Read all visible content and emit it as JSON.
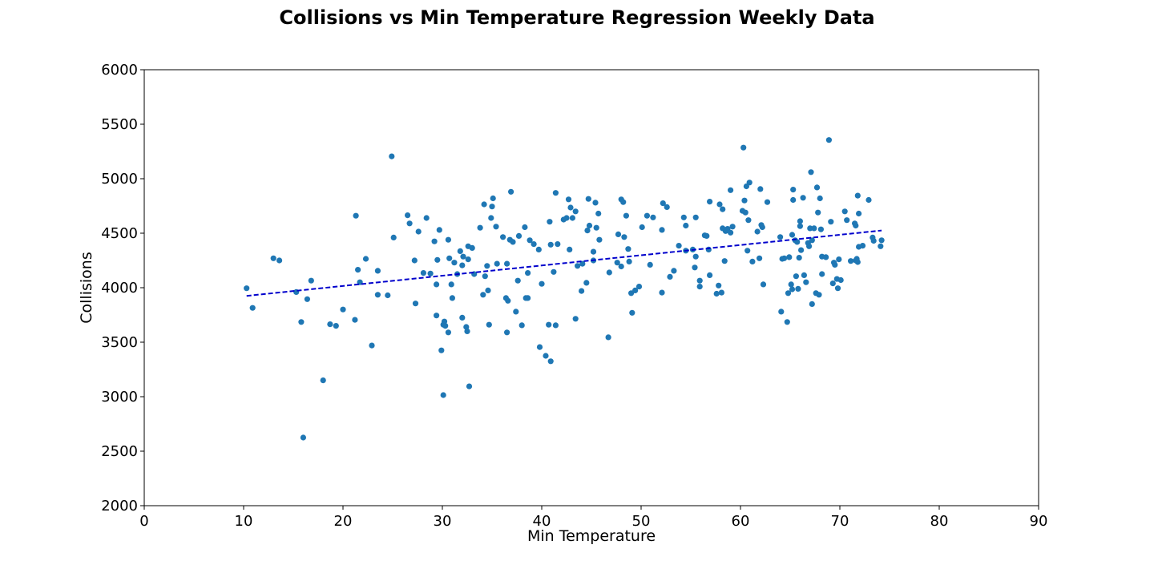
{
  "chart_data": {
    "type": "scatter",
    "title": "Collisions vs Min Temperature Regression Weekly Data",
    "xlabel": "Min Temperature",
    "ylabel": "Collisions",
    "xlim": [
      0,
      90
    ],
    "ylim": [
      2000,
      6000
    ],
    "x_ticks": [
      0,
      10,
      20,
      30,
      40,
      50,
      60,
      70,
      80,
      90
    ],
    "y_ticks": [
      2000,
      2500,
      3000,
      3500,
      4000,
      4500,
      5000,
      5500,
      6000
    ],
    "grid": false,
    "point_color": "#1f77b4",
    "regression_line": {
      "x": [
        10.3,
        74.2
      ],
      "y": [
        3925,
        4525
      ],
      "color": "#0000cc",
      "style": "dashed"
    },
    "points": [
      [
        10.3,
        3995
      ],
      [
        10.9,
        3815
      ],
      [
        13.0,
        4270
      ],
      [
        13.6,
        4250
      ],
      [
        15.3,
        3960
      ],
      [
        15.8,
        3685
      ],
      [
        16.0,
        2625
      ],
      [
        16.4,
        3895
      ],
      [
        16.8,
        4065
      ],
      [
        18.0,
        3150
      ],
      [
        18.7,
        3665
      ],
      [
        19.3,
        3650
      ],
      [
        20.0,
        3800
      ],
      [
        21.2,
        3705
      ],
      [
        21.3,
        4660
      ],
      [
        21.5,
        4165
      ],
      [
        21.7,
        4050
      ],
      [
        22.3,
        4265
      ],
      [
        22.9,
        3470
      ],
      [
        23.5,
        3935
      ],
      [
        23.5,
        4155
      ],
      [
        24.5,
        3930
      ],
      [
        24.9,
        5205
      ],
      [
        25.1,
        4460
      ],
      [
        26.5,
        4665
      ],
      [
        26.7,
        4590
      ],
      [
        27.2,
        4250
      ],
      [
        27.3,
        3855
      ],
      [
        27.6,
        4515
      ],
      [
        28.1,
        4135
      ],
      [
        28.4,
        4640
      ],
      [
        28.8,
        4130
      ],
      [
        29.2,
        4425
      ],
      [
        29.4,
        4030
      ],
      [
        29.4,
        3745
      ],
      [
        29.5,
        4255
      ],
      [
        29.7,
        4530
      ],
      [
        29.9,
        3425
      ],
      [
        30.1,
        3660
      ],
      [
        30.1,
        3015
      ],
      [
        30.2,
        3690
      ],
      [
        30.3,
        3650
      ],
      [
        30.6,
        4440
      ],
      [
        30.6,
        3590
      ],
      [
        30.7,
        4270
      ],
      [
        30.9,
        4030
      ],
      [
        31.0,
        3905
      ],
      [
        31.2,
        4230
      ],
      [
        31.5,
        4125
      ],
      [
        31.8,
        4335
      ],
      [
        32.0,
        3725
      ],
      [
        32.0,
        4205
      ],
      [
        32.1,
        4285
      ],
      [
        32.4,
        3640
      ],
      [
        32.5,
        3600
      ],
      [
        32.6,
        4260
      ],
      [
        32.6,
        4380
      ],
      [
        32.7,
        3095
      ],
      [
        33.0,
        4365
      ],
      [
        33.2,
        4125
      ],
      [
        33.8,
        4550
      ],
      [
        34.1,
        3935
      ],
      [
        34.2,
        4765
      ],
      [
        34.3,
        4105
      ],
      [
        34.5,
        4200
      ],
      [
        34.6,
        3975
      ],
      [
        34.7,
        3660
      ],
      [
        34.9,
        4640
      ],
      [
        35.0,
        4745
      ],
      [
        35.1,
        4820
      ],
      [
        35.4,
        4560
      ],
      [
        35.5,
        4220
      ],
      [
        36.1,
        4465
      ],
      [
        36.4,
        3905
      ],
      [
        36.5,
        4220
      ],
      [
        36.5,
        3590
      ],
      [
        36.6,
        3880
      ],
      [
        36.8,
        4440
      ],
      [
        36.9,
        4880
      ],
      [
        37.1,
        4420
      ],
      [
        37.4,
        3780
      ],
      [
        37.6,
        4065
      ],
      [
        37.7,
        4475
      ],
      [
        38.0,
        3655
      ],
      [
        38.3,
        4555
      ],
      [
        38.4,
        3905
      ],
      [
        38.6,
        4135
      ],
      [
        38.6,
        3905
      ],
      [
        38.8,
        4435
      ],
      [
        39.2,
        4400
      ],
      [
        39.7,
        4350
      ],
      [
        39.8,
        3455
      ],
      [
        40.0,
        4035
      ],
      [
        40.4,
        3375
      ],
      [
        40.7,
        3660
      ],
      [
        40.8,
        4605
      ],
      [
        40.9,
        4395
      ],
      [
        40.9,
        3325
      ],
      [
        41.2,
        4145
      ],
      [
        41.4,
        3655
      ],
      [
        41.4,
        4870
      ],
      [
        41.6,
        4400
      ],
      [
        42.2,
        4625
      ],
      [
        42.5,
        4640
      ],
      [
        42.7,
        4810
      ],
      [
        42.8,
        4350
      ],
      [
        42.9,
        4735
      ],
      [
        43.1,
        4640
      ],
      [
        43.4,
        4700
      ],
      [
        43.4,
        3715
      ],
      [
        43.6,
        4200
      ],
      [
        44.0,
        3970
      ],
      [
        44.1,
        4220
      ],
      [
        44.5,
        4045
      ],
      [
        44.6,
        4525
      ],
      [
        44.7,
        4815
      ],
      [
        44.8,
        4570
      ],
      [
        45.2,
        4250
      ],
      [
        45.2,
        4330
      ],
      [
        45.4,
        4780
      ],
      [
        45.5,
        4550
      ],
      [
        45.7,
        4680
      ],
      [
        45.8,
        4440
      ],
      [
        46.7,
        3545
      ],
      [
        46.8,
        4140
      ],
      [
        47.6,
        4230
      ],
      [
        47.7,
        4490
      ],
      [
        48.0,
        4810
      ],
      [
        48.0,
        4195
      ],
      [
        48.2,
        4785
      ],
      [
        48.3,
        4465
      ],
      [
        48.5,
        4660
      ],
      [
        48.7,
        4355
      ],
      [
        48.8,
        4240
      ],
      [
        49.0,
        3950
      ],
      [
        49.1,
        3770
      ],
      [
        49.4,
        3975
      ],
      [
        49.8,
        4010
      ],
      [
        50.1,
        4555
      ],
      [
        50.6,
        4660
      ],
      [
        50.9,
        4210
      ],
      [
        51.2,
        4645
      ],
      [
        52.1,
        3955
      ],
      [
        52.1,
        4530
      ],
      [
        52.2,
        4775
      ],
      [
        52.6,
        4740
      ],
      [
        52.9,
        4100
      ],
      [
        53.3,
        4155
      ],
      [
        53.8,
        4385
      ],
      [
        54.3,
        4645
      ],
      [
        54.5,
        4340
      ],
      [
        54.5,
        4570
      ],
      [
        55.2,
        4350
      ],
      [
        55.4,
        4185
      ],
      [
        55.5,
        4645
      ],
      [
        55.5,
        4285
      ],
      [
        55.9,
        4010
      ],
      [
        55.9,
        4065
      ],
      [
        56.4,
        4480
      ],
      [
        56.6,
        4475
      ],
      [
        56.8,
        4350
      ],
      [
        56.9,
        4790
      ],
      [
        56.9,
        4115
      ],
      [
        57.6,
        3945
      ],
      [
        57.8,
        4020
      ],
      [
        57.9,
        4765
      ],
      [
        58.1,
        3955
      ],
      [
        58.2,
        4545
      ],
      [
        58.2,
        4720
      ],
      [
        58.4,
        4245
      ],
      [
        58.5,
        4520
      ],
      [
        58.7,
        4540
      ],
      [
        59.0,
        4505
      ],
      [
        59.0,
        4895
      ],
      [
        59.2,
        4560
      ],
      [
        60.2,
        4705
      ],
      [
        60.3,
        5285
      ],
      [
        60.4,
        4800
      ],
      [
        60.5,
        4690
      ],
      [
        60.6,
        4930
      ],
      [
        60.7,
        4340
      ],
      [
        60.8,
        4620
      ],
      [
        60.9,
        4965
      ],
      [
        61.2,
        4240
      ],
      [
        61.7,
        4515
      ],
      [
        61.9,
        4270
      ],
      [
        62.0,
        4905
      ],
      [
        62.1,
        4575
      ],
      [
        62.2,
        4555
      ],
      [
        62.3,
        4030
      ],
      [
        62.7,
        4785
      ],
      [
        64.0,
        4465
      ],
      [
        64.1,
        3780
      ],
      [
        64.2,
        4265
      ],
      [
        64.4,
        4270
      ],
      [
        64.7,
        3685
      ],
      [
        64.8,
        3950
      ],
      [
        64.9,
        4280
      ],
      [
        65.1,
        4030
      ],
      [
        65.2,
        4485
      ],
      [
        65.2,
        3985
      ],
      [
        65.3,
        4900
      ],
      [
        65.3,
        4805
      ],
      [
        65.5,
        4435
      ],
      [
        65.6,
        4105
      ],
      [
        65.7,
        4420
      ],
      [
        65.8,
        3990
      ],
      [
        65.9,
        4275
      ],
      [
        66.0,
        4565
      ],
      [
        66.0,
        4610
      ],
      [
        66.1,
        4345
      ],
      [
        66.3,
        4825
      ],
      [
        66.4,
        4115
      ],
      [
        66.6,
        4050
      ],
      [
        66.8,
        4410
      ],
      [
        66.9,
        4380
      ],
      [
        67.0,
        4545
      ],
      [
        67.1,
        5060
      ],
      [
        67.2,
        4435
      ],
      [
        67.2,
        3850
      ],
      [
        67.4,
        4545
      ],
      [
        67.6,
        3950
      ],
      [
        67.7,
        4920
      ],
      [
        67.8,
        4690
      ],
      [
        67.9,
        3935
      ],
      [
        68.0,
        4820
      ],
      [
        68.1,
        4535
      ],
      [
        68.2,
        4125
      ],
      [
        68.2,
        4285
      ],
      [
        68.6,
        4280
      ],
      [
        68.9,
        5355
      ],
      [
        69.1,
        4605
      ],
      [
        69.3,
        4040
      ],
      [
        69.4,
        4230
      ],
      [
        69.5,
        4210
      ],
      [
        69.7,
        4080
      ],
      [
        69.8,
        3995
      ],
      [
        69.9,
        4260
      ],
      [
        70.1,
        4070
      ],
      [
        70.5,
        4700
      ],
      [
        70.7,
        4620
      ],
      [
        71.1,
        4245
      ],
      [
        71.5,
        4590
      ],
      [
        71.6,
        4570
      ],
      [
        71.6,
        4250
      ],
      [
        71.7,
        4265
      ],
      [
        71.8,
        4235
      ],
      [
        71.8,
        4845
      ],
      [
        71.9,
        4680
      ],
      [
        71.9,
        4375
      ],
      [
        72.3,
        4385
      ],
      [
        72.9,
        4805
      ],
      [
        73.3,
        4460
      ],
      [
        73.4,
        4430
      ],
      [
        74.1,
        4380
      ],
      [
        74.2,
        4435
      ]
    ]
  }
}
